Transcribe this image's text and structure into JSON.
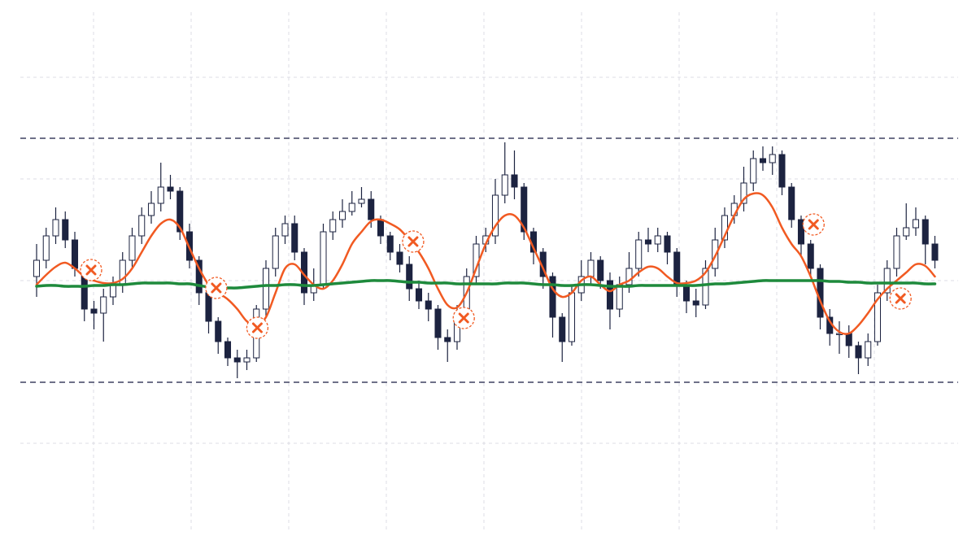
{
  "chart_data": {
    "type": "candlestick",
    "xlim": [
      -3.83,
      98.3
    ],
    "ylim": [
      0,
      675
    ],
    "x": [
      0,
      1,
      2,
      3,
      4,
      5,
      6,
      7,
      8,
      9,
      10,
      11,
      12,
      13,
      14,
      15,
      16,
      17,
      18,
      19,
      20,
      21,
      22,
      23,
      24,
      25,
      26,
      27,
      28,
      29,
      30,
      31,
      32,
      33,
      34,
      35,
      36,
      37,
      38,
      39,
      40,
      41,
      42,
      43,
      44,
      45,
      46,
      47,
      48,
      49,
      50,
      51,
      52,
      53,
      54,
      55,
      56,
      57,
      58,
      59,
      60,
      61,
      62,
      63,
      64,
      65,
      66,
      67,
      68,
      69,
      70,
      71,
      72,
      73,
      74,
      75,
      76,
      77,
      78,
      79,
      80,
      81,
      82,
      83,
      84,
      85,
      86,
      87,
      88,
      89,
      90,
      91,
      92,
      93,
      94
    ],
    "open": [
      335,
      355,
      385,
      405,
      380,
      345,
      295,
      290,
      310,
      325,
      355,
      385,
      410,
      425,
      445,
      440,
      390,
      355,
      315,
      280,
      255,
      235,
      230,
      235,
      295,
      345,
      385,
      400,
      365,
      315,
      325,
      390,
      405,
      415,
      425,
      430,
      405,
      385,
      365,
      350,
      320,
      305,
      295,
      260,
      255,
      290,
      335,
      375,
      385,
      435,
      460,
      445,
      390,
      365,
      335,
      285,
      255,
      315,
      335,
      355,
      330,
      295,
      325,
      345,
      380,
      375,
      385,
      365,
      325,
      305,
      300,
      345,
      380,
      410,
      425,
      450,
      480,
      475,
      485,
      445,
      405,
      375,
      345,
      285,
      265,
      265,
      250,
      235,
      255,
      315,
      345,
      385,
      395,
      405,
      375
    ],
    "high": [
      375,
      395,
      420,
      415,
      390,
      350,
      305,
      320,
      335,
      365,
      395,
      420,
      440,
      475,
      460,
      445,
      400,
      360,
      320,
      285,
      260,
      245,
      245,
      300,
      355,
      395,
      410,
      410,
      370,
      345,
      400,
      415,
      430,
      440,
      445,
      440,
      410,
      390,
      375,
      360,
      330,
      315,
      300,
      270,
      300,
      345,
      385,
      395,
      455,
      500,
      490,
      450,
      395,
      370,
      340,
      290,
      325,
      355,
      365,
      360,
      340,
      335,
      365,
      390,
      395,
      395,
      390,
      370,
      330,
      320,
      355,
      395,
      420,
      435,
      470,
      490,
      495,
      495,
      490,
      450,
      410,
      380,
      350,
      295,
      280,
      275,
      255,
      265,
      325,
      355,
      395,
      425,
      420,
      410,
      385
    ],
    "low": [
      310,
      345,
      375,
      370,
      335,
      280,
      270,
      255,
      300,
      315,
      345,
      375,
      400,
      415,
      430,
      380,
      345,
      300,
      265,
      240,
      225,
      210,
      220,
      230,
      285,
      335,
      375,
      355,
      300,
      305,
      320,
      380,
      395,
      410,
      420,
      395,
      375,
      355,
      340,
      305,
      295,
      280,
      245,
      230,
      245,
      280,
      325,
      365,
      375,
      425,
      430,
      380,
      350,
      320,
      260,
      230,
      250,
      305,
      325,
      320,
      270,
      285,
      315,
      335,
      365,
      365,
      350,
      310,
      290,
      285,
      295,
      335,
      370,
      400,
      415,
      440,
      465,
      460,
      435,
      395,
      360,
      335,
      270,
      250,
      240,
      235,
      215,
      225,
      250,
      305,
      335,
      380,
      385,
      350,
      345
    ],
    "close": [
      355,
      385,
      405,
      380,
      345,
      295,
      290,
      310,
      325,
      355,
      385,
      410,
      425,
      445,
      440,
      390,
      355,
      315,
      280,
      255,
      235,
      230,
      235,
      295,
      345,
      385,
      400,
      365,
      315,
      325,
      390,
      405,
      415,
      425,
      430,
      405,
      385,
      365,
      350,
      320,
      305,
      295,
      260,
      255,
      290,
      335,
      375,
      385,
      435,
      460,
      445,
      390,
      365,
      335,
      285,
      255,
      315,
      335,
      355,
      330,
      295,
      325,
      345,
      380,
      375,
      385,
      365,
      325,
      305,
      300,
      345,
      380,
      410,
      425,
      450,
      480,
      475,
      485,
      445,
      405,
      375,
      345,
      285,
      265,
      265,
      250,
      235,
      255,
      315,
      345,
      385,
      395,
      405,
      375,
      355
    ],
    "up_color": "#ffffff",
    "down_color": "#1c2340",
    "series": [
      {
        "color": "#f15a22",
        "values": [
          325,
          337,
          347,
          352,
          345,
          335,
          330,
          327,
          327,
          332,
          345,
          365,
          385,
          400,
          405,
          395,
          370,
          345,
          325,
          315,
          307,
          295,
          280,
          275,
          285,
          315,
          345,
          350,
          337,
          325,
          320,
          330,
          350,
          375,
          390,
          403,
          405,
          400,
          393,
          380,
          365,
          345,
          320,
          300,
          297,
          315,
          345,
          375,
          397,
          410,
          410,
          395,
          370,
          345,
          320,
          310,
          315,
          330,
          335,
          325,
          317,
          325,
          330,
          340,
          347,
          345,
          335,
          327,
          327,
          330,
          340,
          360,
          385,
          410,
          430,
          437,
          435,
          420,
          395,
          375,
          360,
          335,
          305,
          280,
          267,
          265,
          275,
          290,
          307,
          320,
          330,
          340,
          350,
          348,
          335
        ]
      },
      {
        "color": "#1e8a3c",
        "values": [
          323,
          324,
          324,
          323,
          323,
          323,
          324,
          324,
          325,
          325,
          326,
          327,
          327,
          327,
          327,
          326,
          326,
          324,
          322,
          321,
          321,
          321,
          322,
          323,
          324,
          324,
          325,
          325,
          324,
          324,
          325,
          326,
          327,
          328,
          329,
          330,
          330,
          330,
          329,
          328,
          328,
          327,
          327,
          327,
          326,
          326,
          326,
          326,
          326,
          327,
          327,
          327,
          326,
          325,
          325,
          324,
          324,
          325,
          325,
          324,
          323,
          323,
          323,
          324,
          324,
          324,
          324,
          324,
          324,
          324,
          325,
          326,
          326,
          327,
          328,
          329,
          330,
          330,
          330,
          330,
          330,
          330,
          330,
          329,
          329,
          328,
          328,
          327,
          327,
          327,
          327,
          327,
          327,
          326,
          326
        ]
      }
    ],
    "levels": [
      505,
      205
    ],
    "level_color": "#6e7088",
    "markers": {
      "color": "#f15a22",
      "x": [
        5.7,
        18.8,
        23.1,
        39.4,
        44.7,
        81.3,
        90.4
      ],
      "values": [
        343,
        321,
        272,
        378,
        284,
        399,
        308
      ]
    }
  }
}
